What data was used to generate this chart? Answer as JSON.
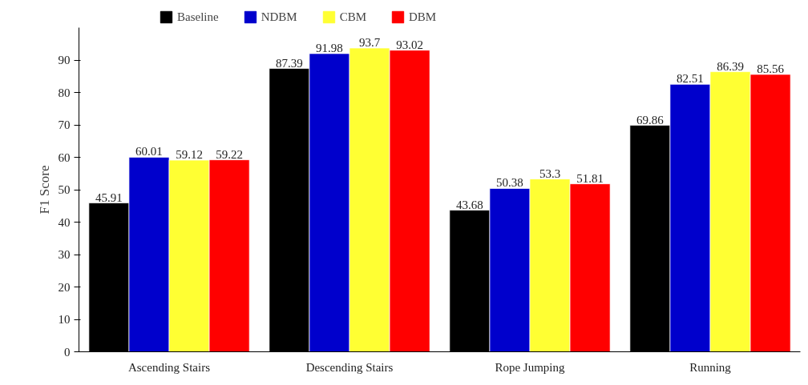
{
  "chart_data": {
    "type": "bar",
    "ylabel": "F1 Score",
    "categories": [
      "Ascending Stairs",
      "Descending Stairs",
      "Rope Jumping",
      "Running"
    ],
    "series": [
      {
        "name": "Baseline",
        "color": "#000000",
        "values": [
          45.91,
          87.39,
          43.68,
          69.86
        ]
      },
      {
        "name": "NDBM",
        "color": "#0000cc",
        "values": [
          60.01,
          91.98,
          50.38,
          82.51
        ]
      },
      {
        "name": "CBM",
        "color": "#ffff33",
        "values": [
          59.12,
          93.7,
          53.3,
          86.39
        ]
      },
      {
        "name": "DBM",
        "color": "#ff0000",
        "values": [
          59.22,
          93.02,
          51.81,
          85.56
        ]
      }
    ],
    "ylim": [
      0,
      100
    ],
    "yticks": [
      0,
      10,
      20,
      30,
      40,
      50,
      60,
      70,
      80,
      90
    ],
    "grid": false,
    "legend": "top",
    "data_labels": true
  }
}
